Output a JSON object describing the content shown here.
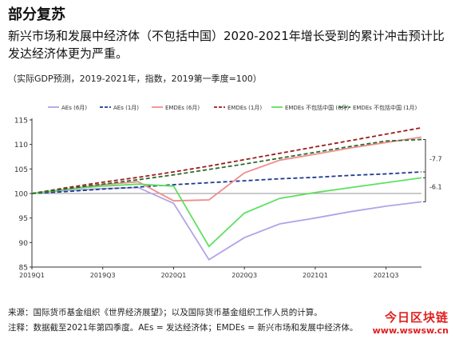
{
  "heading": "部分复苏",
  "subtitle": "新兴市场和发展中经济体（不包括中国）2020-2021年增长受到的累计冲击预计比发达经济体更为严重。",
  "note": "（实际GDP预测，2019-2021年，指数，2019第一季度=100）",
  "source": "来源：国际货币基金组织《世界经济展望》；以及国际货币基金组织工作人员的计算。",
  "footnote": "注释：数据截至2021年第四季度。AEs = 发达经济体；EMDEs = 新兴市场和发展中经济体。",
  "watermark": {
    "line1": "今日区块链",
    "line2": "www.wswsw.cn"
  },
  "chart_data": {
    "type": "line",
    "title": "",
    "xlabel": "",
    "ylabel": "",
    "ylim": [
      85,
      115
    ],
    "yticks": [
      85,
      90,
      95,
      100,
      105,
      110,
      115
    ],
    "x": [
      "2019Q1",
      "2019Q2",
      "2019Q3",
      "2019Q4",
      "2020Q1",
      "2020Q2",
      "2020Q3",
      "2020Q4",
      "2021Q1",
      "2021Q2",
      "2021Q3",
      "2021Q4"
    ],
    "xtick_labels": [
      "2019Q1",
      "2019Q3",
      "2020Q1",
      "2020Q3",
      "2021Q1",
      "2021Q3"
    ],
    "reference_line": 100,
    "legend_position": "top",
    "grid": false,
    "series": [
      {
        "name": "AEs (6月)",
        "color": "#b3a3e6",
        "dash": "solid",
        "values": [
          100,
          100.6,
          101.0,
          101.2,
          98.0,
          86.5,
          91.0,
          93.8,
          95.0,
          96.3,
          97.4,
          98.3
        ]
      },
      {
        "name": "AEs (1月)",
        "color": "#1f3a8f",
        "dash": "dashed",
        "values": [
          100,
          100.4,
          100.9,
          101.3,
          101.8,
          102.2,
          102.6,
          103.0,
          103.3,
          103.7,
          104.0,
          104.4
        ]
      },
      {
        "name": "EMDEs (6月)",
        "color": "#f08c8c",
        "dash": "solid",
        "values": [
          100,
          100.9,
          101.8,
          102.4,
          98.5,
          98.7,
          104.2,
          106.8,
          108.0,
          109.3,
          110.4,
          111.5
        ]
      },
      {
        "name": "EMDEs (1月)",
        "color": "#9c1c1c",
        "dash": "dashed",
        "values": [
          100,
          101.2,
          102.3,
          103.3,
          104.4,
          105.6,
          106.9,
          108.2,
          109.5,
          110.8,
          112.1,
          113.4
        ]
      },
      {
        "name": "EMDEs 不包括中国 (6月)",
        "color": "#5fe05f",
        "dash": "solid",
        "values": [
          100,
          100.9,
          101.5,
          101.9,
          101.5,
          89.2,
          96.0,
          99.0,
          100.2,
          101.2,
          102.2,
          103.2
        ]
      },
      {
        "name": "EMDEs 不包括中国 (1月)",
        "color": "#2e6b2e",
        "dash": "dashed",
        "values": [
          100,
          101.0,
          101.9,
          102.8,
          103.8,
          104.9,
          106.0,
          107.2,
          108.4,
          109.6,
          110.7,
          111.0
        ]
      }
    ],
    "annotations": [
      {
        "text": "-7.7",
        "between": [
          "EMDEs 不包括中国 (1月)",
          "EMDEs 不包括中国 (6月)"
        ]
      },
      {
        "text": "-6.1",
        "between": [
          "AEs (1月)",
          "AEs (6月)"
        ]
      }
    ]
  }
}
